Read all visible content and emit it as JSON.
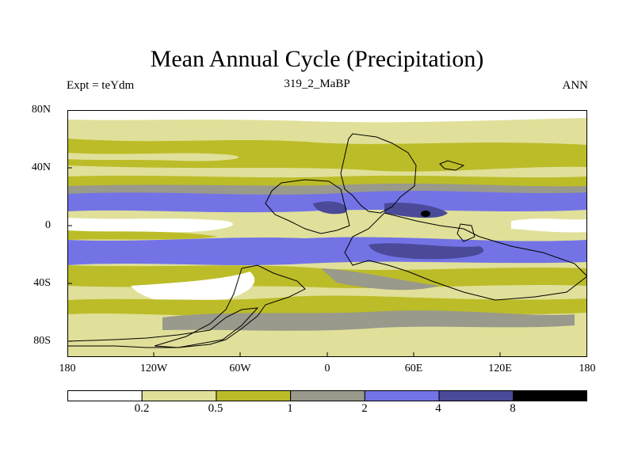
{
  "title": "Mean Annual Cycle (Precipitation)",
  "subtitle_left": "Expt = teYdm",
  "subtitle_center": "319_2_MaBP",
  "subtitle_right": "ANN",
  "lat_ticks": [
    "80N",
    "40N",
    "0",
    "40S",
    "80S"
  ],
  "lon_ticks": [
    "180",
    "120W",
    "60W",
    "0",
    "60E",
    "120E",
    "180"
  ],
  "colorbar": {
    "labels": [
      "0.2",
      "0.5",
      "1",
      "2",
      "4",
      "8"
    ],
    "colors": [
      "#ffffff",
      "#e0e09a",
      "#bcbc28",
      "#99998c",
      "#7373e6",
      "#4a4a99",
      "#000000"
    ]
  }
}
